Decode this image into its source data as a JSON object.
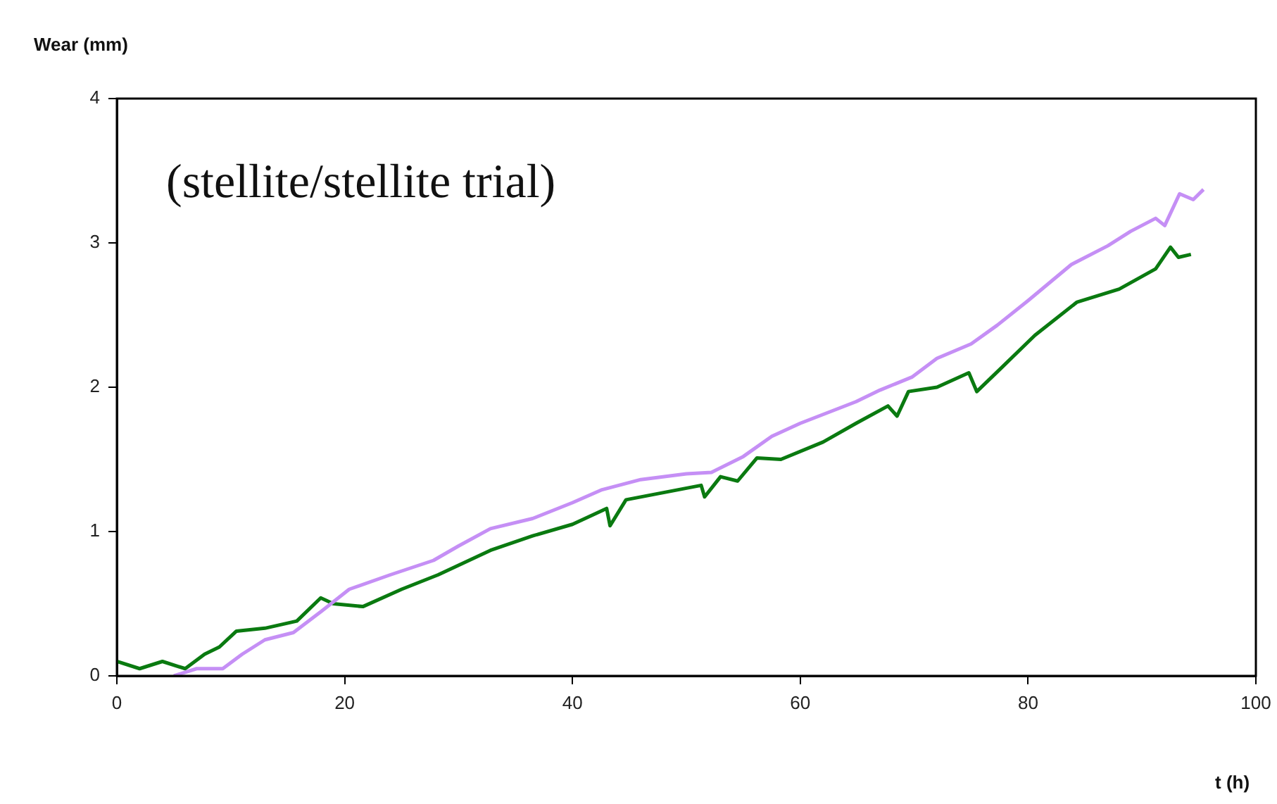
{
  "chart_data": {
    "type": "line",
    "xlabel": "t (h)",
    "ylabel": "Wear (mm)",
    "annotations": [
      "(stellite/stellite trial)"
    ],
    "xlim": [
      0,
      100
    ],
    "xticks": [
      0,
      20,
      40,
      60,
      80,
      100
    ],
    "ylim": [
      0,
      4
    ],
    "yticks": [
      0,
      1,
      2,
      3,
      4
    ],
    "grid": false,
    "legend": false,
    "marker": "none",
    "line_style": "solid",
    "series": [
      {
        "color": "#c58ff5",
        "x": [
          5,
          7,
          9.3,
          11,
          13,
          15.5,
          18,
          20.4,
          24,
          27.8,
          30,
          32.8,
          36.5,
          40,
          42.6,
          46,
          50,
          52.2,
          55,
          57.5,
          60,
          64.9,
          67,
          69.8,
          72,
          75,
          77.3,
          80,
          83.8,
          87,
          89,
          91.2,
          92,
          93.3,
          94.5,
          95.4
        ],
        "values": [
          0,
          0.05,
          0.05,
          0.15,
          0.25,
          0.3,
          0.45,
          0.6,
          0.7,
          0.8,
          0.9,
          1.02,
          1.09,
          1.2,
          1.29,
          1.36,
          1.4,
          1.41,
          1.52,
          1.66,
          1.75,
          1.9,
          1.98,
          2.07,
          2.2,
          2.3,
          2.43,
          2.6,
          2.85,
          2.98,
          3.08,
          3.17,
          3.12,
          3.34,
          3.3,
          3.37
        ]
      },
      {
        "color": "#0a7a10",
        "x": [
          0,
          2,
          4,
          6,
          7.7,
          9,
          10.5,
          13,
          15.8,
          17.9,
          19,
          21.6,
          25,
          28.2,
          32.8,
          36.5,
          40,
          43,
          43.3,
          44.7,
          48,
          51.3,
          51.6,
          53,
          54.5,
          56.2,
          58.3,
          62,
          64.9,
          67.7,
          68.5,
          69.5,
          72,
          74.8,
          75.5,
          77.6,
          80.6,
          84.3,
          88,
          91.2,
          92.5,
          93.2,
          94.3
        ],
        "values": [
          0.1,
          0.05,
          0.1,
          0.05,
          0.15,
          0.2,
          0.31,
          0.33,
          0.38,
          0.54,
          0.5,
          0.48,
          0.6,
          0.7,
          0.87,
          0.97,
          1.05,
          1.16,
          1.04,
          1.22,
          1.27,
          1.32,
          1.24,
          1.38,
          1.35,
          1.51,
          1.5,
          1.62,
          1.75,
          1.87,
          1.8,
          1.97,
          2.0,
          2.1,
          1.97,
          2.13,
          2.36,
          2.59,
          2.68,
          2.82,
          2.97,
          2.9,
          2.92
        ]
      }
    ]
  }
}
